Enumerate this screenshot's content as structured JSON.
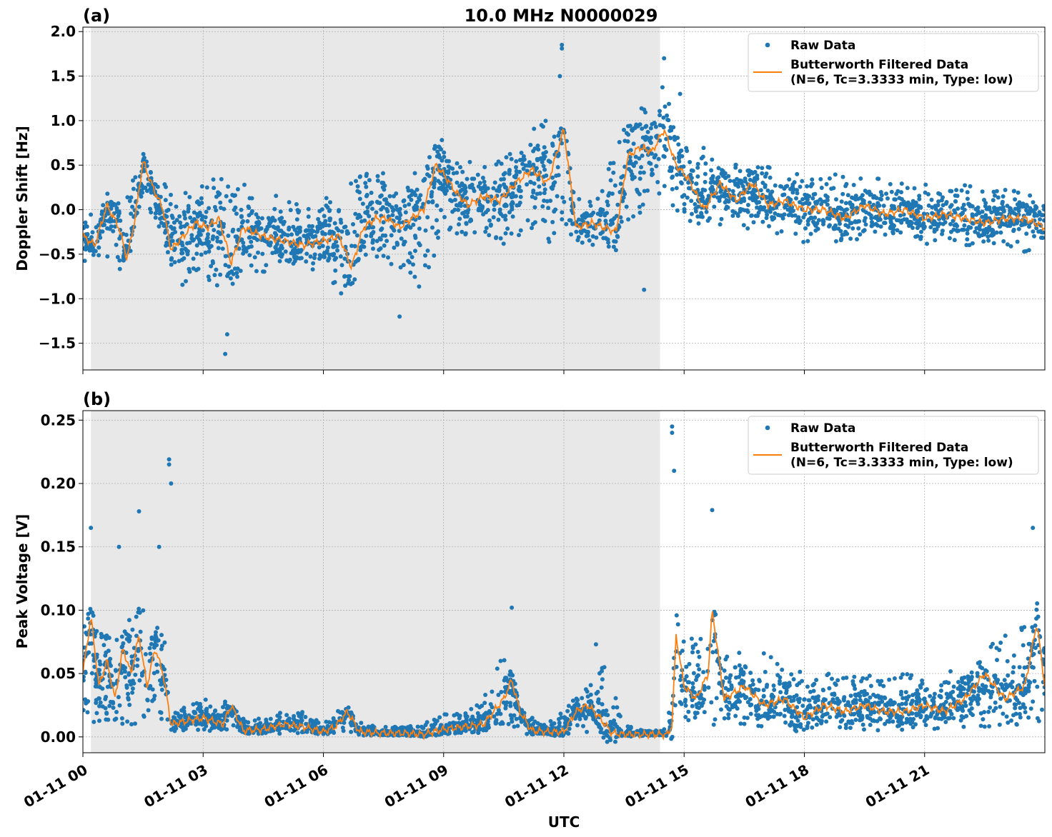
{
  "title": "10.0 MHz N0000029",
  "xlabel": "UTC",
  "x_tick_labels": [
    "01-11 00",
    "01-11 03",
    "01-11 06",
    "01-11 09",
    "01-11 12",
    "01-11 15",
    "01-11 18",
    "01-11 21"
  ],
  "colors": {
    "raw": "#1f77b4",
    "filtered": "#ff7f0e",
    "shade": "#e8e8e8",
    "grid": "#b0b0b0"
  },
  "legend": {
    "raw_label": "Raw Data",
    "filtered_line1": "Butterworth Filtered Data",
    "filtered_line2": "(N=6, Tc=3.3333 min, Type: low)"
  },
  "chart_data": [
    {
      "type": "scatter",
      "panel": "(a)",
      "title": "10.0 MHz N0000029",
      "xlabel": "",
      "ylabel": "Doppler Shift [Hz]",
      "x_unit": "hours UTC on 01-11",
      "xlim": [
        0,
        24
      ],
      "ylim": [
        -1.8,
        2.05
      ],
      "yticks": [
        -1.5,
        -1.0,
        -0.5,
        0.0,
        0.5,
        1.0,
        1.5,
        2.0
      ],
      "ytick_labels": [
        "−1.5",
        "−1.0",
        "−0.5",
        "0.0",
        "0.5",
        "1.0",
        "1.5",
        "2.0"
      ],
      "shaded_x_range": [
        0.2,
        14.4
      ],
      "grid": true,
      "legend_position": "upper-right",
      "series": [
        {
          "name": "Butterworth Filtered Data",
          "kind": "line",
          "x": [
            0,
            0.3,
            0.6,
            0.9,
            1.1,
            1.3,
            1.5,
            1.7,
            2.0,
            2.2,
            2.5,
            2.8,
            3.1,
            3.4,
            3.7,
            4.0,
            4.5,
            5.0,
            5.5,
            6.0,
            6.4,
            6.7,
            7.0,
            7.3,
            7.6,
            7.9,
            8.2,
            8.5,
            8.8,
            9.0,
            9.3,
            9.6,
            10.0,
            10.4,
            10.8,
            11.2,
            11.6,
            12.0,
            12.3,
            12.7,
            13.0,
            13.3,
            13.6,
            13.9,
            14.2,
            14.5,
            14.8,
            15.1,
            15.5,
            15.9,
            16.3,
            16.7,
            17.1,
            17.5,
            18.0,
            18.5,
            19.0,
            19.5,
            20.0,
            20.5,
            21.0,
            21.5,
            22.0,
            22.5,
            23.0,
            23.5,
            24.0
          ],
          "y": [
            -0.3,
            -0.4,
            0.05,
            -0.2,
            -0.55,
            -0.1,
            0.55,
            0.3,
            0.0,
            -0.45,
            -0.3,
            -0.15,
            -0.2,
            -0.1,
            -0.6,
            -0.2,
            -0.3,
            -0.35,
            -0.4,
            -0.35,
            -0.3,
            -0.65,
            -0.2,
            -0.1,
            -0.1,
            -0.2,
            -0.1,
            0.0,
            0.5,
            0.4,
            0.2,
            0.05,
            0.15,
            0.1,
            0.3,
            0.45,
            0.3,
            0.9,
            -0.2,
            -0.15,
            -0.2,
            -0.25,
            0.6,
            0.7,
            0.65,
            0.9,
            0.5,
            0.35,
            0.0,
            0.3,
            0.1,
            0.3,
            0.05,
            0.1,
            0.0,
            0.0,
            -0.1,
            0.05,
            -0.05,
            0.0,
            -0.1,
            -0.05,
            -0.1,
            -0.15,
            -0.1,
            -0.1,
            -0.2
          ]
        },
        {
          "name": "Raw Data",
          "kind": "points",
          "band_x": [
            0,
            0.5,
            1.0,
            1.5,
            2.0,
            2.5,
            3.0,
            3.5,
            4.0,
            4.5,
            5.0,
            5.5,
            6.0,
            6.5,
            7.0,
            7.5,
            8.0,
            8.5,
            9.0,
            9.5,
            10.0,
            10.5,
            11.0,
            11.5,
            12.0,
            12.5,
            13.0,
            13.5,
            14.0,
            14.5,
            15.0,
            15.5,
            16.0,
            16.5,
            17.0,
            17.5,
            18.0,
            18.5,
            19.0,
            19.5,
            20.0,
            20.5,
            21.0,
            21.5,
            22.0,
            22.5,
            23.0,
            23.5,
            24.0
          ],
          "band_low": [
            -0.6,
            -0.5,
            -0.7,
            0.2,
            -0.4,
            -0.9,
            -0.7,
            -1.0,
            -0.8,
            -0.8,
            -0.7,
            -0.7,
            -0.7,
            -1.0,
            -0.5,
            -0.6,
            -0.8,
            -0.9,
            -0.2,
            -0.3,
            -0.3,
            -0.4,
            -0.3,
            -0.4,
            -0.4,
            -0.4,
            -0.4,
            -0.2,
            0.0,
            0.2,
            -0.2,
            -0.2,
            -0.2,
            -0.3,
            -0.3,
            -0.3,
            -0.4,
            -0.3,
            -0.4,
            -0.3,
            -0.3,
            -0.3,
            -0.4,
            -0.3,
            -0.4,
            -0.4,
            -0.4,
            -0.5,
            -0.4
          ],
          "band_high": [
            0.0,
            0.1,
            0.1,
            0.6,
            0.3,
            0.2,
            0.3,
            0.4,
            0.3,
            0.1,
            0.3,
            0.0,
            0.1,
            0.3,
            0.4,
            0.5,
            0.3,
            0.6,
            0.8,
            0.6,
            0.5,
            0.6,
            0.8,
            1.1,
            0.5,
            0.1,
            0.3,
            1.0,
            1.2,
            1.4,
            0.9,
            0.7,
            0.6,
            0.5,
            0.5,
            0.4,
            0.4,
            0.4,
            0.4,
            0.35,
            0.35,
            0.3,
            0.3,
            0.3,
            0.3,
            0.25,
            0.25,
            0.2,
            0.1
          ],
          "notable_points": [
            [
              11.95,
              1.85
            ],
            [
              11.95,
              1.81
            ],
            [
              3.55,
              -1.62
            ],
            [
              3.6,
              -1.4
            ],
            [
              14.0,
              -0.9
            ],
            [
              14.5,
              1.7
            ],
            [
              14.9,
              1.3
            ],
            [
              7.9,
              -1.2
            ],
            [
              11.9,
              1.5
            ]
          ]
        }
      ]
    },
    {
      "type": "scatter",
      "panel": "(b)",
      "title": "",
      "xlabel": "UTC",
      "ylabel": "Peak Voltage [V]",
      "x_unit": "hours UTC on 01-11",
      "xlim": [
        0,
        24
      ],
      "ylim": [
        -0.0125,
        0.2575
      ],
      "yticks": [
        0.0,
        0.05,
        0.1,
        0.15,
        0.2,
        0.25
      ],
      "ytick_labels": [
        "0.00",
        "0.05",
        "0.10",
        "0.15",
        "0.20",
        "0.25"
      ],
      "shaded_x_range": [
        0.2,
        14.4
      ],
      "grid": true,
      "legend_position": "upper-right",
      "series": [
        {
          "name": "Butterworth Filtered Data",
          "kind": "line",
          "x": [
            0,
            0.2,
            0.4,
            0.6,
            0.8,
            1.0,
            1.2,
            1.4,
            1.6,
            1.8,
            2.0,
            2.2,
            2.5,
            3.0,
            3.5,
            3.7,
            4.0,
            4.5,
            5.0,
            5.5,
            6.0,
            6.3,
            6.6,
            6.9,
            7.5,
            8.0,
            8.5,
            9.0,
            9.5,
            10.0,
            10.5,
            10.7,
            10.9,
            11.2,
            11.6,
            12.0,
            12.3,
            12.6,
            12.9,
            13.2,
            13.5,
            14.0,
            14.4,
            14.6,
            14.7,
            14.8,
            15.0,
            15.3,
            15.6,
            15.7,
            16.0,
            16.5,
            17.0,
            17.5,
            18.0,
            18.5,
            19.0,
            19.5,
            20.0,
            20.5,
            21.0,
            21.5,
            22.0,
            22.5,
            23.0,
            23.5,
            23.8,
            24.0
          ],
          "y": [
            0.05,
            0.095,
            0.04,
            0.06,
            0.03,
            0.07,
            0.05,
            0.08,
            0.04,
            0.07,
            0.05,
            0.01,
            0.012,
            0.015,
            0.01,
            0.025,
            0.005,
            0.006,
            0.01,
            0.008,
            0.004,
            0.008,
            0.02,
            0.004,
            0.003,
            0.003,
            0.002,
            0.006,
            0.008,
            0.01,
            0.03,
            0.045,
            0.02,
            0.005,
            0.004,
            0.004,
            0.02,
            0.025,
            0.015,
            0.003,
            0.002,
            0.002,
            0.002,
            0.002,
            0.01,
            0.08,
            0.04,
            0.03,
            0.05,
            0.1,
            0.03,
            0.04,
            0.025,
            0.03,
            0.015,
            0.025,
            0.02,
            0.025,
            0.02,
            0.02,
            0.025,
            0.02,
            0.03,
            0.05,
            0.03,
            0.04,
            0.09,
            0.04
          ]
        },
        {
          "name": "Raw Data",
          "kind": "points",
          "band_x": [
            0,
            0.5,
            1.0,
            1.5,
            2.0,
            2.2,
            2.5,
            3.0,
            3.5,
            4.0,
            4.5,
            5.0,
            5.5,
            6.0,
            6.5,
            7.0,
            7.5,
            8.0,
            8.5,
            9.0,
            9.5,
            10.0,
            10.5,
            11.0,
            11.5,
            12.0,
            12.5,
            13.0,
            13.5,
            14.0,
            14.4,
            14.6,
            14.8,
            15.0,
            15.5,
            16.0,
            16.5,
            17.0,
            17.5,
            18.0,
            18.5,
            19.0,
            19.5,
            20.0,
            20.5,
            21.0,
            21.5,
            22.0,
            22.5,
            23.0,
            23.5,
            24.0
          ],
          "band_low": [
            0.01,
            0.01,
            0.01,
            0.01,
            0.01,
            0.003,
            0.005,
            0.005,
            0.003,
            0.002,
            0.002,
            0.002,
            0.002,
            0.002,
            0.002,
            0.001,
            0.001,
            0.001,
            0.001,
            0.002,
            0.002,
            0.002,
            0.01,
            0.002,
            0.002,
            0.002,
            0.003,
            0.003,
            0.001,
            0.001,
            0.001,
            0.001,
            0.02,
            0.005,
            0.005,
            0.005,
            0.005,
            0.005,
            0.005,
            0.003,
            0.005,
            0.005,
            0.005,
            0.005,
            0.005,
            0.005,
            0.005,
            0.005,
            0.008,
            0.008,
            0.008,
            0.01
          ],
          "band_high": [
            0.1,
            0.08,
            0.1,
            0.1,
            0.09,
            0.03,
            0.025,
            0.03,
            0.03,
            0.015,
            0.015,
            0.02,
            0.02,
            0.01,
            0.025,
            0.01,
            0.008,
            0.008,
            0.01,
            0.02,
            0.02,
            0.03,
            0.07,
            0.02,
            0.01,
            0.02,
            0.04,
            0.06,
            0.01,
            0.005,
            0.005,
            0.01,
            0.12,
            0.08,
            0.08,
            0.07,
            0.07,
            0.07,
            0.06,
            0.05,
            0.06,
            0.05,
            0.05,
            0.05,
            0.05,
            0.05,
            0.05,
            0.06,
            0.07,
            0.08,
            0.09,
            0.08
          ],
          "notable_points": [
            [
              14.7,
              0.245
            ],
            [
              14.7,
              0.24
            ],
            [
              14.75,
              0.21
            ],
            [
              2.15,
              0.219
            ],
            [
              2.15,
              0.215
            ],
            [
              2.2,
              0.2
            ],
            [
              1.4,
              0.178
            ],
            [
              15.7,
              0.179
            ],
            [
              0.2,
              0.165
            ],
            [
              23.7,
              0.165
            ],
            [
              0.9,
              0.15
            ],
            [
              1.9,
              0.15
            ],
            [
              10.7,
              0.102
            ],
            [
              12.8,
              0.073
            ]
          ]
        }
      ]
    }
  ]
}
